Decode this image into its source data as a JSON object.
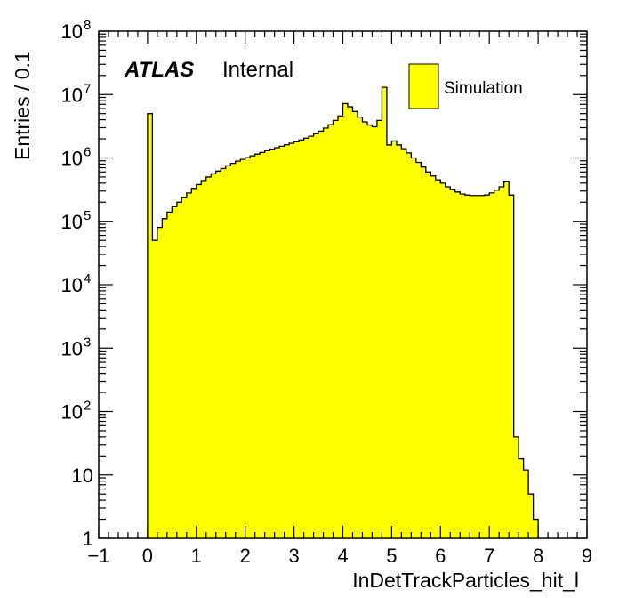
{
  "chart_data": {
    "type": "histogram",
    "xlabel": "InDetTrackParticles_hit_l",
    "ylabel": "Entries / 0.1",
    "xlim": [
      -1,
      9
    ],
    "ylim": [
      1,
      100000000
    ],
    "y_scale": "log",
    "x_ticks": [
      "−1",
      "0",
      "1",
      "2",
      "3",
      "4",
      "5",
      "6",
      "7",
      "8",
      "9"
    ],
    "y_ticks": [
      {
        "value": 1,
        "base": "1",
        "exp": ""
      },
      {
        "value": 10,
        "base": "10",
        "exp": ""
      },
      {
        "value": 100,
        "base": "10",
        "exp": "2"
      },
      {
        "value": 1000,
        "base": "10",
        "exp": "3"
      },
      {
        "value": 10000,
        "base": "10",
        "exp": "4"
      },
      {
        "value": 100000,
        "base": "10",
        "exp": "5"
      },
      {
        "value": 1000000,
        "base": "10",
        "exp": "6"
      },
      {
        "value": 10000000,
        "base": "10",
        "exp": "7"
      },
      {
        "value": 100000000,
        "base": "10",
        "exp": "8"
      }
    ],
    "bin_width": 0.1,
    "x_start": 0.0,
    "fill_color": "#ffff00",
    "line_color": "#000000",
    "atlas_label": "ATLAS",
    "atlas_sublabel": "Internal",
    "legend": {
      "position": "top-right",
      "entries": [
        {
          "label": "Simulation",
          "color": "#ffff00"
        }
      ]
    },
    "series": [
      {
        "values": [
          5000000,
          50000,
          80000,
          110000,
          140000,
          170000,
          200000,
          240000,
          280000,
          330000,
          380000,
          440000,
          500000,
          560000,
          620000,
          680000,
          750000,
          820000,
          890000,
          950000,
          1010000,
          1080000,
          1150000,
          1220000,
          1300000,
          1380000,
          1450000,
          1530000,
          1610000,
          1700000,
          1800000,
          1920000,
          2050000,
          2200000,
          2400000,
          2650000,
          2950000,
          3350000,
          3900000,
          4600000,
          7200000,
          6400000,
          5400000,
          4400000,
          3700000,
          3300000,
          3100000,
          3900000,
          13000000,
          1600000,
          1850000,
          1600000,
          1400000,
          1200000,
          1000000,
          850000,
          720000,
          600000,
          520000,
          450000,
          400000,
          350000,
          320000,
          290000,
          270000,
          260000,
          255000,
          255000,
          255000,
          260000,
          280000,
          310000,
          350000,
          430000,
          260000,
          40,
          18,
          12,
          5,
          2
        ]
      }
    ]
  }
}
